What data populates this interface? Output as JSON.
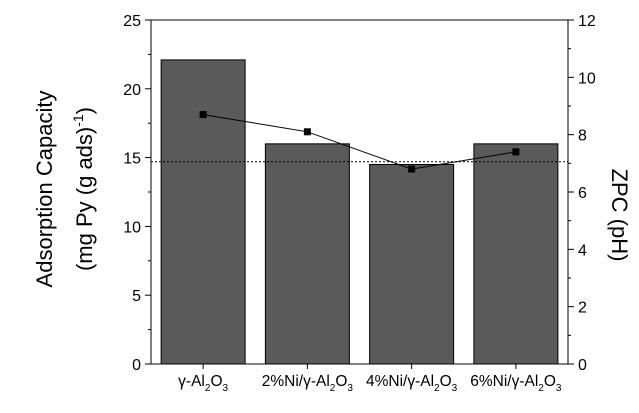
{
  "chart_data": {
    "type": "bar",
    "categories": [
      {
        "pre": "γ-Al",
        "sub1": "2",
        "mid": "O",
        "sub2": "3"
      },
      {
        "pre": "2%Ni/γ-Al",
        "sub1": "2",
        "mid": "O",
        "sub2": "3"
      },
      {
        "pre": "4%Ni/γ-Al",
        "sub1": "2",
        "mid": "O",
        "sub2": "3"
      },
      {
        "pre": "6%Ni/γ-Al",
        "sub1": "2",
        "mid": "O",
        "sub2": "3"
      }
    ],
    "series": [
      {
        "type": "bar",
        "axis": "left",
        "values": [
          22.1,
          16.0,
          14.5,
          16.0
        ],
        "color": "#5a5a5a"
      },
      {
        "type": "line",
        "axis": "right",
        "marker": "square",
        "values": [
          8.7,
          8.1,
          6.8,
          7.4
        ],
        "color": "#000000"
      }
    ],
    "reference_line": {
      "axis": "left",
      "value": 14.7,
      "style": "dotted"
    },
    "ylabel": {
      "line1": "Adsorption Capacity",
      "line2_pre": "(mg Py (g ads)",
      "line2_sup": "-1",
      "line2_post": ")"
    },
    "y2label": "ZPC (pH)",
    "ylim": [
      0,
      25
    ],
    "y2lim": [
      0,
      12
    ],
    "yticks": [
      "0",
      "5",
      "10",
      "15",
      "20",
      "25"
    ],
    "y2ticks": [
      "0",
      "2",
      "4",
      "6",
      "8",
      "10",
      "12"
    ]
  }
}
